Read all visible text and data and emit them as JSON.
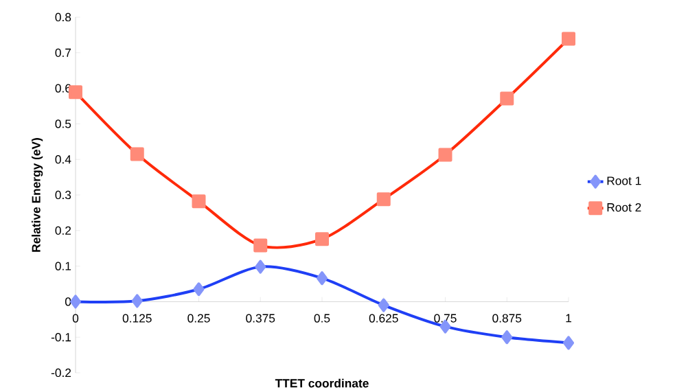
{
  "chart_data": {
    "type": "line",
    "xlabel": "TTET coordinate",
    "ylabel": "Relative Energy (eV)",
    "x": [
      0,
      0.125,
      0.25,
      0.375,
      0.5,
      0.625,
      0.75,
      0.875,
      1
    ],
    "series": [
      {
        "name": "Root 1",
        "color": "#1f3ff5",
        "marker": "diamond",
        "values": [
          0,
          0.002,
          0.035,
          0.098,
          0.066,
          -0.01,
          -0.07,
          -0.1,
          -0.116
        ]
      },
      {
        "name": "Root 2",
        "color": "#ff2a0a",
        "marker": "square",
        "values": [
          0.589,
          0.415,
          0.282,
          0.158,
          0.176,
          0.288,
          0.413,
          0.571,
          0.739
        ]
      }
    ],
    "xlim": [
      0,
      1
    ],
    "xticks": [
      0,
      0.125,
      0.25,
      0.375,
      0.5,
      0.625,
      0.75,
      0.875,
      1
    ],
    "ylim": [
      -0.2,
      0.8
    ],
    "yticks": [
      -0.2,
      -0.1,
      0,
      0.1,
      0.2,
      0.3,
      0.4,
      0.5,
      0.6,
      0.7,
      0.8
    ],
    "grid": false,
    "legend": "right",
    "line_style": "solid"
  }
}
